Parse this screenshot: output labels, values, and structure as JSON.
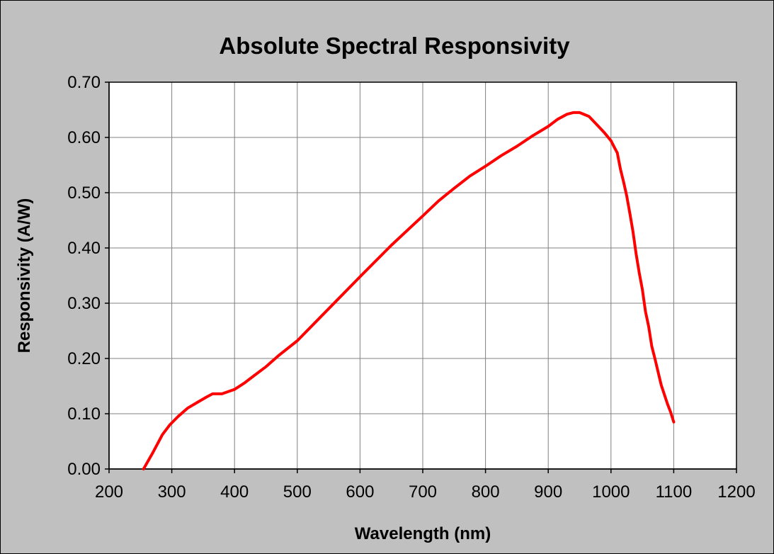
{
  "chart_data": {
    "type": "line",
    "title": "Absolute Spectral Responsivity",
    "xlabel": "Wavelength (nm)",
    "ylabel": "Responsivity (A/W)",
    "xlim": [
      200,
      1200
    ],
    "ylim": [
      0,
      0.7
    ],
    "xticks": [
      "200",
      "300",
      "400",
      "500",
      "600",
      "700",
      "800",
      "900",
      "1000",
      "1100",
      "1200"
    ],
    "yticks": [
      "0.00",
      "0.10",
      "0.20",
      "0.30",
      "0.40",
      "0.50",
      "0.60",
      "0.70"
    ],
    "grid": true,
    "legend": "none",
    "colors": {
      "background": "#c0c0c0",
      "plot_area": "#ffffff",
      "line": "#ff0000"
    },
    "series": [
      {
        "x": [
          255,
          270,
          285,
          297,
          310,
          325,
          340,
          355,
          365,
          380,
          390,
          400,
          415,
          430,
          450,
          470,
          500,
          550,
          600,
          650,
          700,
          725,
          750,
          775,
          800,
          825,
          850,
          875,
          900,
          915,
          930,
          940,
          950,
          965,
          980,
          990,
          1000,
          1005,
          1010,
          1015,
          1020,
          1025,
          1030,
          1035,
          1040,
          1045,
          1050,
          1055,
          1060,
          1065,
          1070,
          1080,
          1090,
          1095,
          1100
        ],
        "y": [
          0.0,
          0.03,
          0.062,
          0.08,
          0.095,
          0.11,
          0.12,
          0.13,
          0.136,
          0.136,
          0.14,
          0.144,
          0.155,
          0.168,
          0.185,
          0.205,
          0.232,
          0.29,
          0.348,
          0.405,
          0.458,
          0.485,
          0.508,
          0.53,
          0.548,
          0.567,
          0.584,
          0.603,
          0.62,
          0.633,
          0.642,
          0.645,
          0.645,
          0.638,
          0.62,
          0.608,
          0.594,
          0.583,
          0.572,
          0.543,
          0.52,
          0.495,
          0.463,
          0.43,
          0.39,
          0.355,
          0.325,
          0.285,
          0.258,
          0.222,
          0.2,
          0.152,
          0.118,
          0.103,
          0.085
        ]
      }
    ]
  }
}
